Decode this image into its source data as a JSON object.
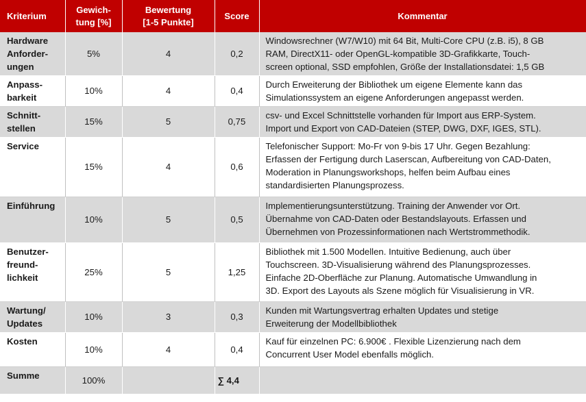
{
  "header": {
    "kriterium": "Kriterium",
    "gewichtung": "Gewich-\ntung [%]",
    "bewertung": "Bewertung\n[1-5 Punkte]",
    "score": "Score",
    "kommentar": "Kommentar"
  },
  "rows": [
    {
      "kriterium": "Hardware\nAnforder-\nungen",
      "gewichtung": "5%",
      "bewertung": "4",
      "score": "0,2",
      "kommentar": "Windowsrechner (W7/W10) mit 64 Bit, Multi-Core CPU (z.B. i5), 8 GB\nRAM, DirectX11- oder OpenGL-kompatible 3D-Grafikkarte, Touch-\nscreen optional, SSD empfohlen, Größe der Installationsdatei: 1,5 GB"
    },
    {
      "kriterium": "Anpass-\nbarkeit",
      "gewichtung": "10%",
      "bewertung": "4",
      "score": "0,4",
      "kommentar": "Durch Erweiterung der Bibliothek um eigene Elemente kann das\nSimulationssystem an eigene Anforderungen angepasst werden."
    },
    {
      "kriterium": "Schnitt-\nstellen",
      "gewichtung": "15%",
      "bewertung": "5",
      "score": "0,75",
      "kommentar": "csv- und Excel Schnittstelle vorhanden für Import aus ERP-System.\nImport und Export von CAD-Dateien (STEP, DWG, DXF, IGES, STL)."
    },
    {
      "kriterium": "Service",
      "gewichtung": "15%",
      "bewertung": "4",
      "score": "0,6",
      "kommentar": "Telefonischer Support: Mo-Fr von 9-bis 17 Uhr. Gegen Bezahlung:\nErfassen der Fertigung durch Laserscan, Aufbereitung von CAD-Daten,\nModeration in Planungsworkshops, helfen beim Aufbau eines\nstandardisierten Planungsprozess."
    },
    {
      "kriterium": "Einführung",
      "gewichtung": "10%",
      "bewertung": "5",
      "score": "0,5",
      "kommentar": "Implementierungsunterstützung. Training der Anwender vor Ort.\nÜbernahme von CAD-Daten oder Bestandslayouts. Erfassen und\nÜbernehmen von Prozessinformationen nach Wertstrommethodik."
    },
    {
      "kriterium": "Benutzer-\nfreund-\nlichkeit",
      "gewichtung": "25%",
      "bewertung": "5",
      "score": "1,25",
      "kommentar": "Bibliothek mit 1.500 Modellen. Intuitive Bedienung, auch über\nTouchscreen. 3D-Visualisierung während des Planungsprozesses.\nEinfache 2D-Oberfläche zur Planung. Automatische Umwandlung in\n3D. Export des Layouts als Szene möglich für Visualisierung in VR."
    },
    {
      "kriterium": "Wartung/\nUpdates",
      "gewichtung": "10%",
      "bewertung": "3",
      "score": "0,3",
      "kommentar": "Kunden mit Wartungsvertrag erhalten Updates und stetige\nErweiterung der Modellbibliothek"
    },
    {
      "kriterium": "Kosten",
      "gewichtung": "10%",
      "bewertung": "4",
      "score": "0,4",
      "kommentar": "Kauf für einzelnen PC: 6.900€ . Flexible Lizenzierung nach dem\nConcurrent User Model ebenfalls möglich."
    },
    {
      "kriterium": "Summe",
      "gewichtung": "100%",
      "bewertung": "",
      "score": "∑ 4,4",
      "kommentar": ""
    }
  ]
}
